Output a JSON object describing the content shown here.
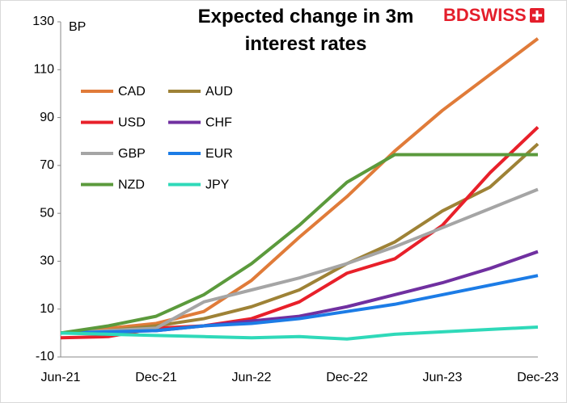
{
  "chart_data": {
    "type": "line",
    "title": "Expected change in 3m interest rates",
    "y_label": "BP",
    "logo": "BDSWISS",
    "categories": [
      "Jun-21",
      null,
      "Dec-21",
      null,
      "Jun-22",
      null,
      "Dec-22",
      null,
      "Jun-23",
      null,
      "Dec-23"
    ],
    "ylim": [
      -10,
      130
    ],
    "yticks": [
      -10,
      10,
      30,
      50,
      70,
      90,
      110,
      130
    ],
    "legend": "upper left",
    "series": [
      {
        "name": "CAD",
        "color": "#e07b39",
        "values": [
          0,
          2,
          4,
          9,
          22,
          40,
          57,
          76,
          93,
          108,
          123
        ]
      },
      {
        "name": "AUD",
        "color": "#9e8236",
        "values": [
          0,
          1,
          3,
          6,
          11,
          18,
          29,
          38,
          51,
          61,
          79
        ]
      },
      {
        "name": "USD",
        "color": "#e8202a",
        "values": [
          -2,
          -1.5,
          2,
          3,
          6,
          13,
          25,
          31,
          45,
          67,
          86
        ]
      },
      {
        "name": "CHF",
        "color": "#7030a0",
        "values": [
          0,
          0.5,
          1,
          3,
          5,
          7,
          11,
          16,
          21,
          27,
          34
        ]
      },
      {
        "name": "GBP",
        "color": "#a5a5a5",
        "values": [
          0,
          1,
          2,
          13,
          18,
          23,
          29,
          36,
          44,
          52,
          60
        ]
      },
      {
        "name": "EUR",
        "color": "#1c7ce6",
        "values": [
          0,
          0.5,
          1,
          3,
          4,
          6,
          9,
          12,
          16,
          20,
          24
        ]
      },
      {
        "name": "NZD",
        "color": "#5b9a3c",
        "values": [
          0,
          3,
          7,
          16,
          29,
          45,
          63,
          74.5,
          74.5,
          74.5,
          74.5
        ]
      },
      {
        "name": "JPY",
        "color": "#2fd9b9",
        "values": [
          0,
          -0.5,
          -1,
          -1.5,
          -2,
          -1.5,
          -2.5,
          -0.5,
          0.5,
          1.5,
          2.5
        ]
      }
    ]
  }
}
